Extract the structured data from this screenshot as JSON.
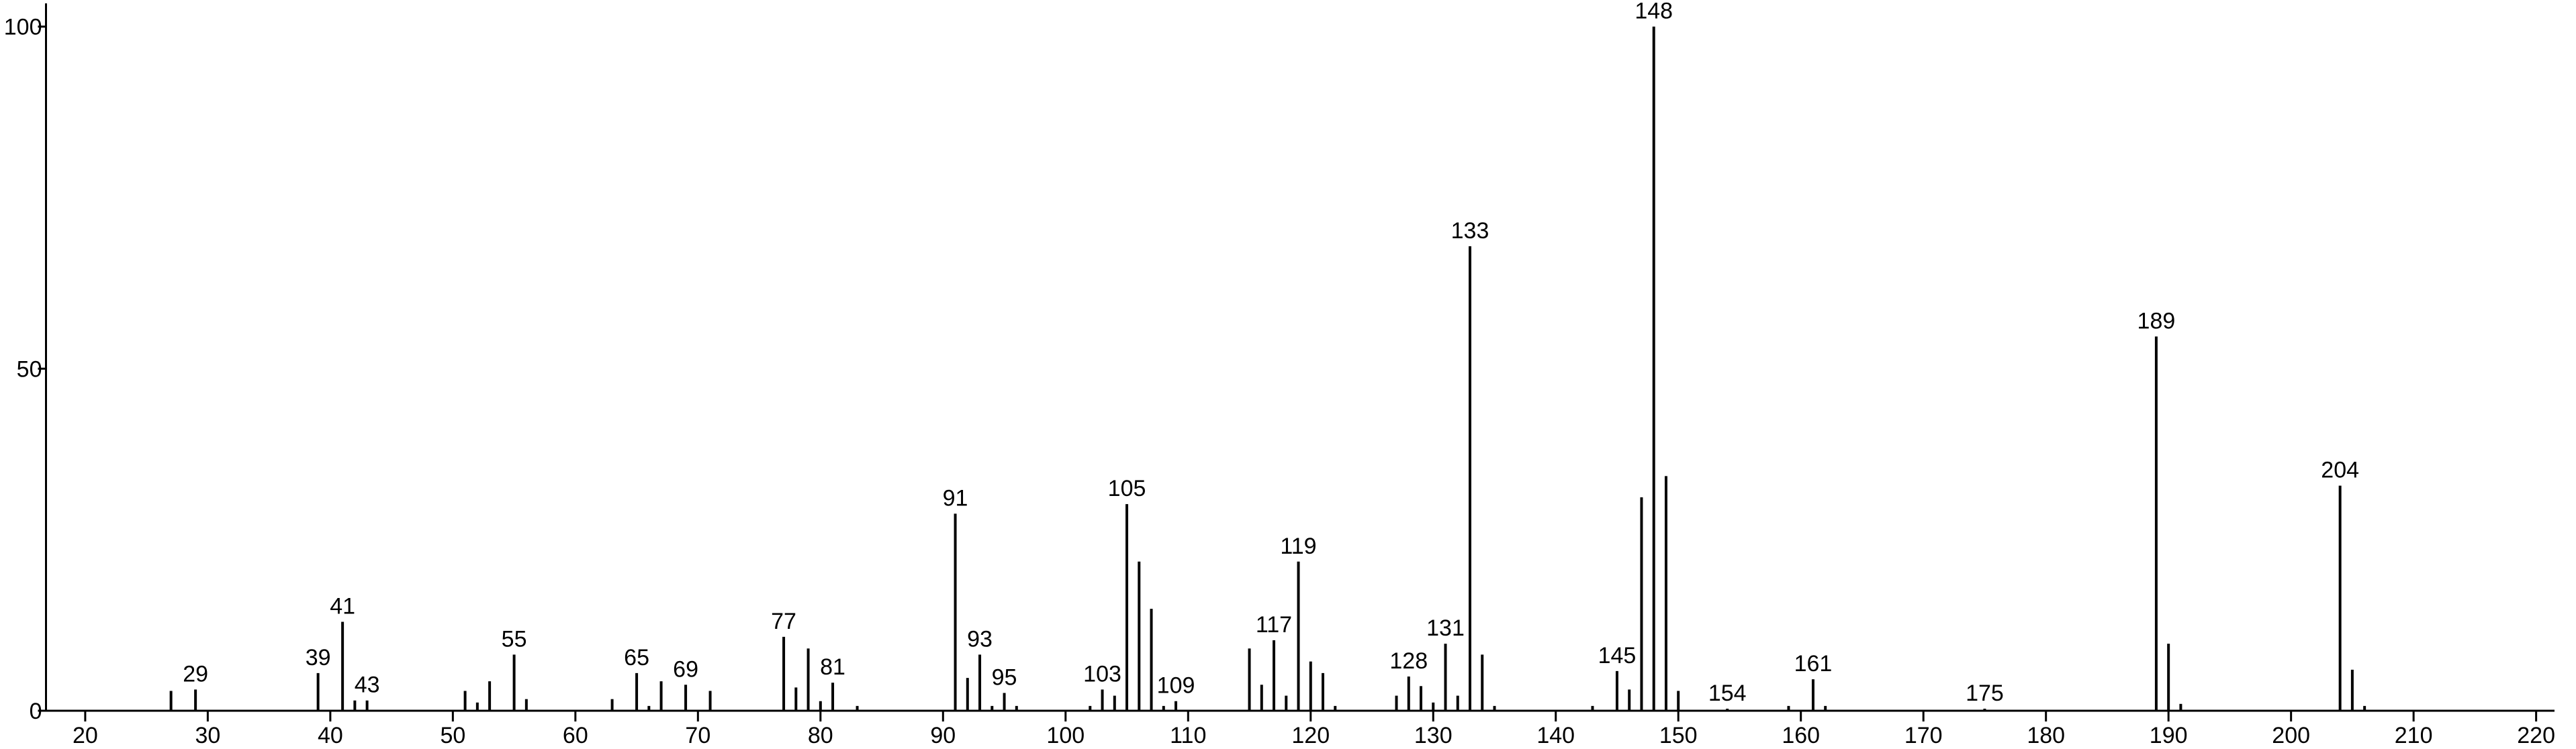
{
  "chart_data": {
    "type": "bar",
    "xlim": [
      16.8,
      221.5
    ],
    "ylim": [
      0,
      103.4
    ],
    "xticks": [
      20,
      30,
      40,
      50,
      60,
      70,
      80,
      90,
      100,
      110,
      120,
      130,
      140,
      150,
      160,
      170,
      180,
      190,
      200,
      210,
      220
    ],
    "yticks": [
      0,
      50,
      100
    ],
    "series": [
      {
        "color": "#000000",
        "data_labels": true,
        "x": [
          29,
          39,
          41,
          43,
          55,
          65,
          69,
          77,
          81,
          91,
          93,
          95,
          103,
          105,
          109,
          117,
          119,
          128,
          131,
          133,
          145,
          148,
          154,
          161,
          175,
          189,
          204
        ],
        "values": [
          3.1,
          5.5,
          13,
          1.5,
          8.2,
          5.5,
          3.8,
          10.8,
          4.1,
          28.8,
          8.2,
          2.6,
          3.1,
          30.2,
          1.4,
          10.3,
          21.8,
          5.0,
          9.8,
          67.9,
          5.8,
          100,
          0.3,
          4.6,
          0.3,
          54.7,
          32.9
        ]
      },
      {
        "color": "#000000",
        "data_labels": false,
        "x": [
          27,
          42,
          51,
          52,
          53,
          56,
          63,
          66,
          67,
          71,
          78,
          79,
          80,
          83,
          92,
          94,
          96,
          102,
          104,
          106,
          107,
          108,
          115,
          116,
          118,
          120,
          121,
          122,
          127,
          129,
          130,
          132,
          134,
          135,
          143,
          146,
          147,
          149,
          150,
          159,
          162,
          190,
          191,
          205,
          206
        ],
        "values": [
          2.9,
          1.5,
          2.9,
          1.2,
          4.3,
          1.7,
          1.7,
          0.7,
          4.3,
          2.9,
          3.4,
          9.1,
          1.4,
          0.7,
          4.8,
          0.7,
          0.7,
          0.7,
          2.2,
          21.8,
          14.9,
          0.7,
          9.1,
          3.8,
          2.2,
          7.2,
          5.5,
          0.7,
          2.2,
          3.6,
          1.2,
          2.2,
          8.2,
          0.7,
          0.7,
          3.1,
          31.2,
          34.3,
          2.9,
          0.7,
          0.7,
          9.8,
          1.0,
          6.0,
          0.7
        ]
      }
    ]
  }
}
